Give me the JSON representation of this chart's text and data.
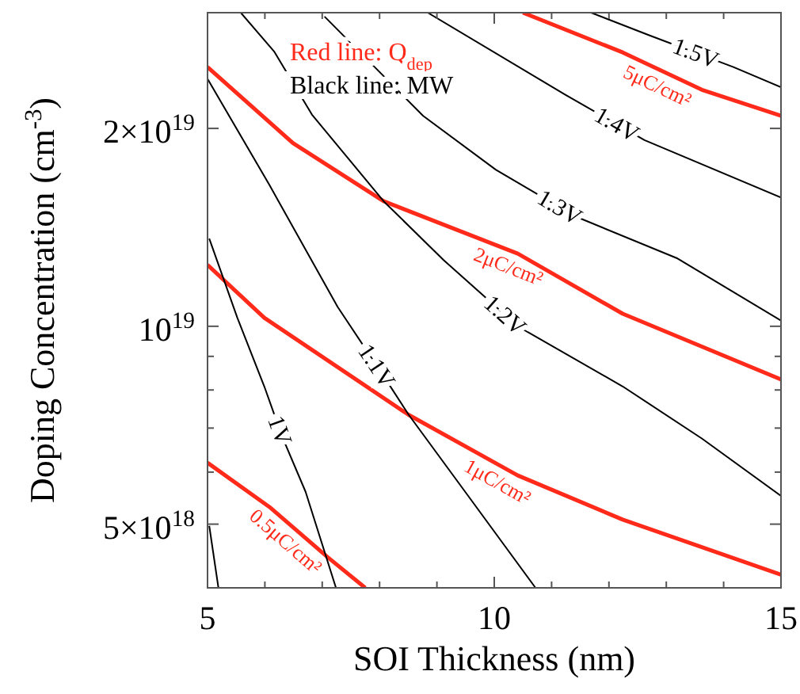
{
  "chart_data": {
    "type": "line",
    "xlabel": "SOI Thickness (nm)",
    "ylabel": "Doping Concentration (cm$^{-3}$)",
    "log": "y",
    "xlim": [
      5,
      15
    ],
    "ylim": [
      4e+18,
      3e+19
    ],
    "xticks": [
      5,
      {
        "value": 6,
        "label": null
      },
      {
        "value": 7,
        "label": null
      },
      {
        "value": 8,
        "label": null
      },
      {
        "value": 9,
        "label": null
      },
      10,
      {
        "value": 11,
        "label": null
      },
      {
        "value": 12,
        "label": null
      },
      {
        "value": 13,
        "label": null
      },
      {
        "value": 14,
        "label": null
      },
      15
    ],
    "yticks": [
      {
        "value": 5e+18,
        "label": "5×10$^{18}$"
      },
      {
        "value": 6e+18,
        "label": null
      },
      {
        "value": 7e+18,
        "label": null
      },
      {
        "value": 8e+18,
        "label": null
      },
      {
        "value": 9e+18,
        "label": null
      },
      {
        "value": 1e+19,
        "label": "10$^{19}$"
      },
      {
        "value": 2e+19,
        "label": "2×10$^{19}$"
      }
    ],
    "grid": false,
    "marker": "none",
    "line_style": "solid",
    "annotations": [
      "Red line: Q$_{dep}$",
      "Black line: MW"
    ],
    "series": [
      {
        "name": "5μC/cm²",
        "color": "#ff2a1a",
        "x": [
          10.5,
          12.24,
          13.62,
          15
        ],
        "values": [
          3e+19,
          2.61e+19,
          2.29e+19,
          2.09e+19
        ]
      },
      {
        "name": "2μC/cm²",
        "color": "#ff2a1a",
        "x": [
          5,
          6.49,
          8.07,
          10.41,
          12.24,
          15
        ],
        "values": [
          2.48e+19,
          1.9e+19,
          1.55e+19,
          1.29e+19,
          1.045e+19,
          8.3e+18
        ]
      },
      {
        "name": "1μC/cm²",
        "color": "#ff2a1a",
        "x": [
          5,
          5.99,
          8.51,
          10.41,
          12.24,
          15
        ],
        "values": [
          1.24e+19,
          1.03e+19,
          7.33e+18,
          5.93e+18,
          5.08e+18,
          4.19e+18
        ]
      },
      {
        "name": "0.5μC/cm²",
        "color": "#ff2a1a",
        "x": [
          5,
          6.08,
          7.1,
          7.75
        ],
        "values": [
          6.2e+18,
          5.31e+18,
          4.45e+18,
          4e+18
        ]
      },
      {
        "name": "1.5V",
        "color": "#000000",
        "x": [
          11.69,
          12.71,
          14.17,
          15
        ],
        "values": [
          3e+19,
          2.77e+19,
          2.48e+19,
          2.31e+19
        ]
      },
      {
        "name": "1.4V",
        "color": "#000000",
        "x": [
          8.84,
          11.24,
          12.62,
          15
        ],
        "values": [
          3e+19,
          2.25e+19,
          1.92e+19,
          1.57e+19
        ]
      },
      {
        "name": "1.3V",
        "color": "#000000",
        "x": [
          7.04,
          8.76,
          10.03,
          11.41,
          13.18,
          15
        ],
        "values": [
          2.96e+19,
          2.09e+19,
          1.73e+19,
          1.47e+19,
          1.27e+19,
          1.02e+19
        ]
      },
      {
        "name": "1.2V",
        "color": "#000000",
        "x": [
          5.58,
          6.16,
          6.82,
          8.07,
          9.12,
          10.41,
          12.24,
          13.62,
          15
        ],
        "values": [
          3e+19,
          2.62e+19,
          2.1e+19,
          1.55e+19,
          1.26e+19,
          1e+19,
          8.1e+18,
          6.75e+18,
          5.52e+18
        ]
      },
      {
        "name": "1.1V",
        "color": "#000000",
        "x": [
          5,
          6.08,
          7.27,
          8.07,
          8.51,
          9.48,
          10.72
        ],
        "values": [
          2.38e+19,
          1.64e+19,
          1.07e+19,
          8.4e+18,
          7.33e+18,
          5.62e+18,
          4e+18
        ]
      },
      {
        "name": "1V",
        "color": "#000000",
        "x": [
          5.03,
          5.52,
          5.99,
          6.3,
          6.71,
          7.24
        ],
        "values": [
          1.36e+19,
          1.03e+19,
          8.1e+18,
          6.8e+18,
          5.6e+18,
          4e+18
        ]
      },
      {
        "color": "#000000",
        "x": [
          5.03,
          5.19
        ],
        "values": [
          4.97e+18,
          4e+18
        ]
      }
    ]
  }
}
